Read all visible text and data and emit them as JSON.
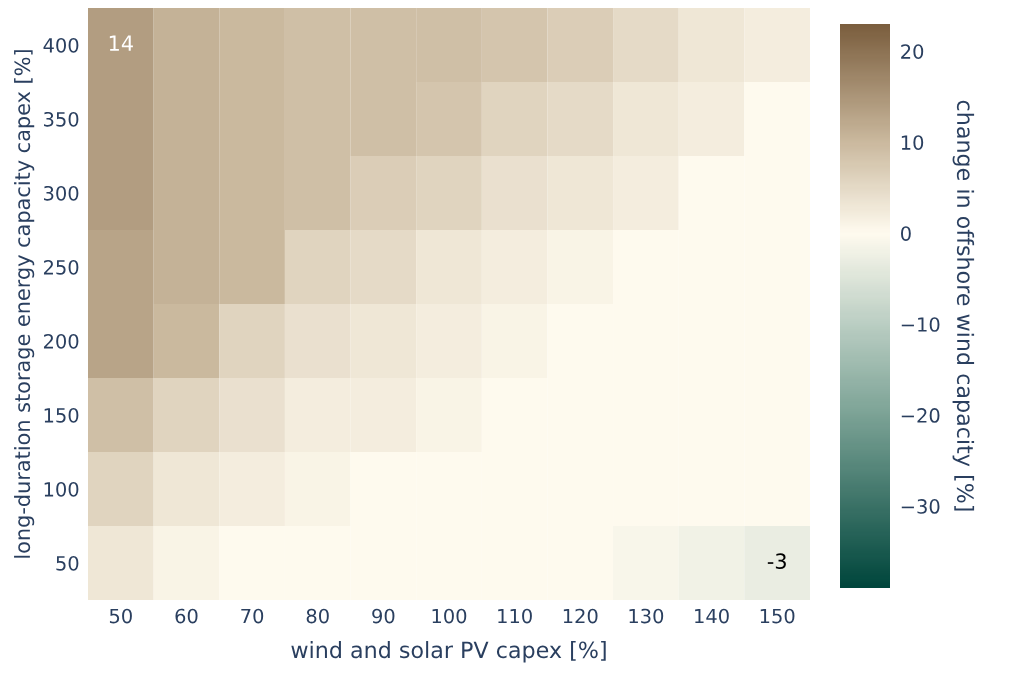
{
  "chart_data": {
    "type": "heatmap",
    "xlabel": "wind and solar PV capex [%]",
    "ylabel": "long-duration storage energy capacity capex [%]",
    "clabel": "change in offshore wind capacity [%]",
    "categories": [
      "50",
      "60",
      "70",
      "80",
      "90",
      "100",
      "110",
      "120",
      "130",
      "140",
      "150"
    ],
    "y_categories": [
      "400",
      "350",
      "300",
      "250",
      "200",
      "150",
      "100",
      "50"
    ],
    "cells": [
      [
        14,
        11,
        10,
        9,
        9,
        9,
        8,
        7,
        5,
        3,
        2
      ],
      [
        14,
        11,
        10,
        9,
        9,
        8,
        6,
        5,
        3,
        2,
        0
      ],
      [
        14,
        11,
        10,
        9,
        7,
        6,
        4,
        3,
        2,
        0,
        0
      ],
      [
        13,
        11,
        10,
        6,
        5,
        3,
        2,
        1,
        0,
        0,
        0
      ],
      [
        13,
        10,
        6,
        4,
        3,
        2,
        1,
        0,
        0,
        0,
        0
      ],
      [
        9,
        6,
        4,
        2,
        2,
        1,
        0,
        0,
        0,
        0,
        0
      ],
      [
        6,
        3,
        2,
        1,
        0,
        0,
        0,
        0,
        0,
        0,
        0
      ],
      [
        3,
        1,
        0,
        0,
        0,
        0,
        0,
        0,
        -1,
        -2,
        -3
      ]
    ],
    "cell_labels": [
      [
        "14",
        null,
        null,
        null,
        null,
        null,
        null,
        null,
        null,
        null,
        null
      ],
      [
        null,
        null,
        null,
        null,
        null,
        null,
        null,
        null,
        null,
        null,
        null
      ],
      [
        null,
        null,
        null,
        null,
        null,
        null,
        null,
        null,
        null,
        null,
        null
      ],
      [
        null,
        null,
        null,
        null,
        null,
        null,
        null,
        null,
        null,
        null,
        null
      ],
      [
        null,
        null,
        null,
        null,
        null,
        null,
        null,
        null,
        null,
        null,
        null
      ],
      [
        null,
        null,
        null,
        null,
        null,
        null,
        null,
        null,
        null,
        null,
        null
      ],
      [
        null,
        null,
        null,
        null,
        null,
        null,
        null,
        null,
        null,
        null,
        null
      ],
      [
        null,
        null,
        null,
        null,
        null,
        null,
        null,
        null,
        null,
        null,
        "-3"
      ]
    ],
    "clim": [
      -39,
      23
    ],
    "cticks": [
      {
        "value": -30,
        "label": "−30"
      },
      {
        "value": -20,
        "label": "−20"
      },
      {
        "value": -10,
        "label": "−10"
      },
      0,
      10,
      20
    ]
  }
}
